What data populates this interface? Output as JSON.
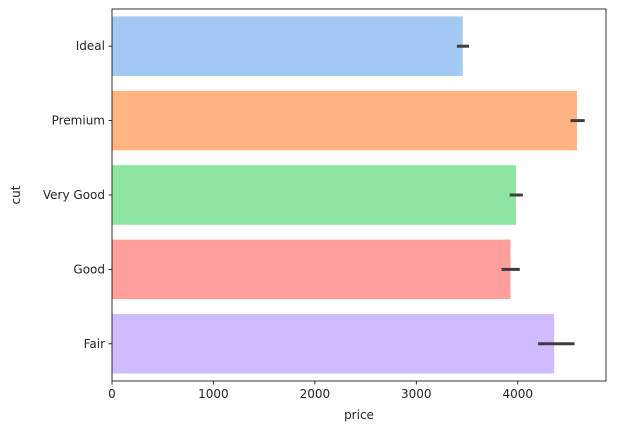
{
  "chart_data": {
    "type": "bar",
    "orientation": "horizontal",
    "xlabel": "price",
    "ylabel": "cut",
    "xlim": [
      0,
      4870
    ],
    "xticks": [
      0,
      1000,
      2000,
      3000,
      4000
    ],
    "categories": [
      "Ideal",
      "Premium",
      "Very Good",
      "Good",
      "Fair"
    ],
    "values": [
      3458,
      4584,
      3982,
      3929,
      4359
    ],
    "error_bars": [
      {
        "low": 3400,
        "high": 3520
      },
      {
        "low": 4520,
        "high": 4660
      },
      {
        "low": 3920,
        "high": 4050
      },
      {
        "low": 3840,
        "high": 4020
      },
      {
        "low": 4200,
        "high": 4560
      }
    ],
    "colors": [
      "#a1c9f4",
      "#ffb482",
      "#8de5a1",
      "#ff9f9b",
      "#d0bbff"
    ],
    "grid": false,
    "legend": "none"
  }
}
